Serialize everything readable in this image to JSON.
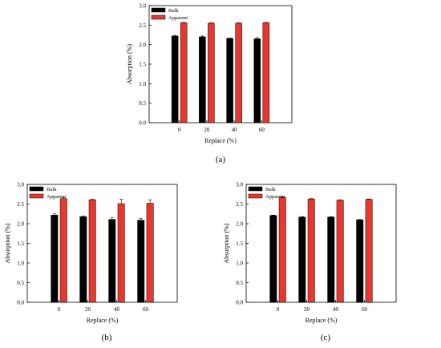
{
  "panels": [
    {
      "caption": "(a)"
    },
    {
      "caption": "(b)"
    },
    {
      "caption": "(c)"
    }
  ],
  "chart_data": [
    {
      "type": "bar",
      "categories": [
        "0",
        "20",
        "40",
        "60"
      ],
      "series": [
        {
          "name": "Bulk",
          "color": "#000000",
          "values": [
            2.22,
            2.2,
            2.16,
            2.15
          ],
          "errors": [
            0.02,
            0.02,
            0.01,
            0.03
          ]
        },
        {
          "name": "Apparent",
          "color": "#e8372c",
          "values": [
            2.56,
            2.55,
            2.55,
            2.56
          ],
          "errors": [
            0.01,
            0.01,
            0.01,
            0.01
          ]
        }
      ],
      "xlabel": "Replace (%)",
      "ylabel": "Absorption (%)",
      "ylim": [
        0,
        3.0
      ],
      "yticks": [
        "0.0",
        "0.5",
        "1.0",
        "1.5",
        "2.0",
        "2.5",
        "3.0"
      ],
      "legend": "top-left",
      "grid": false
    },
    {
      "type": "bar",
      "categories": [
        "0",
        "20",
        "40",
        "60"
      ],
      "series": [
        {
          "name": "Bulk",
          "color": "#000000",
          "values": [
            2.22,
            2.18,
            2.11,
            2.09
          ],
          "errors": [
            0.03,
            0.02,
            0.04,
            0.04
          ]
        },
        {
          "name": "Apparent",
          "color": "#e8372c",
          "values": [
            2.64,
            2.61,
            2.51,
            2.52
          ],
          "errors": [
            0.02,
            0.01,
            0.11,
            0.09
          ]
        }
      ],
      "xlabel": "Replace (%)",
      "ylabel": "Absorption (%)",
      "ylim": [
        0,
        3.0
      ],
      "yticks": [
        "0.0",
        "0.5",
        "1.0",
        "1.5",
        "2.0",
        "2.5",
        "3.0"
      ],
      "legend": "top-left",
      "grid": false
    },
    {
      "type": "bar",
      "categories": [
        "0",
        "20",
        "40",
        "60"
      ],
      "series": [
        {
          "name": "Bulk",
          "color": "#000000",
          "values": [
            2.21,
            2.17,
            2.17,
            2.1
          ],
          "errors": [
            0.01,
            0.01,
            0.01,
            0.01
          ]
        },
        {
          "name": "Apparent",
          "color": "#e8372c",
          "values": [
            2.67,
            2.63,
            2.6,
            2.62
          ],
          "errors": [
            0.02,
            0.01,
            0.01,
            0.01
          ]
        }
      ],
      "xlabel": "Replace (%)",
      "ylabel": "Absorption (%)",
      "ylim": [
        0,
        3.0
      ],
      "yticks": [
        "0.0",
        "0.5",
        "1.0",
        "1.5",
        "2.0",
        "2.5",
        "3.0"
      ],
      "legend": "top-left",
      "grid": false
    }
  ]
}
